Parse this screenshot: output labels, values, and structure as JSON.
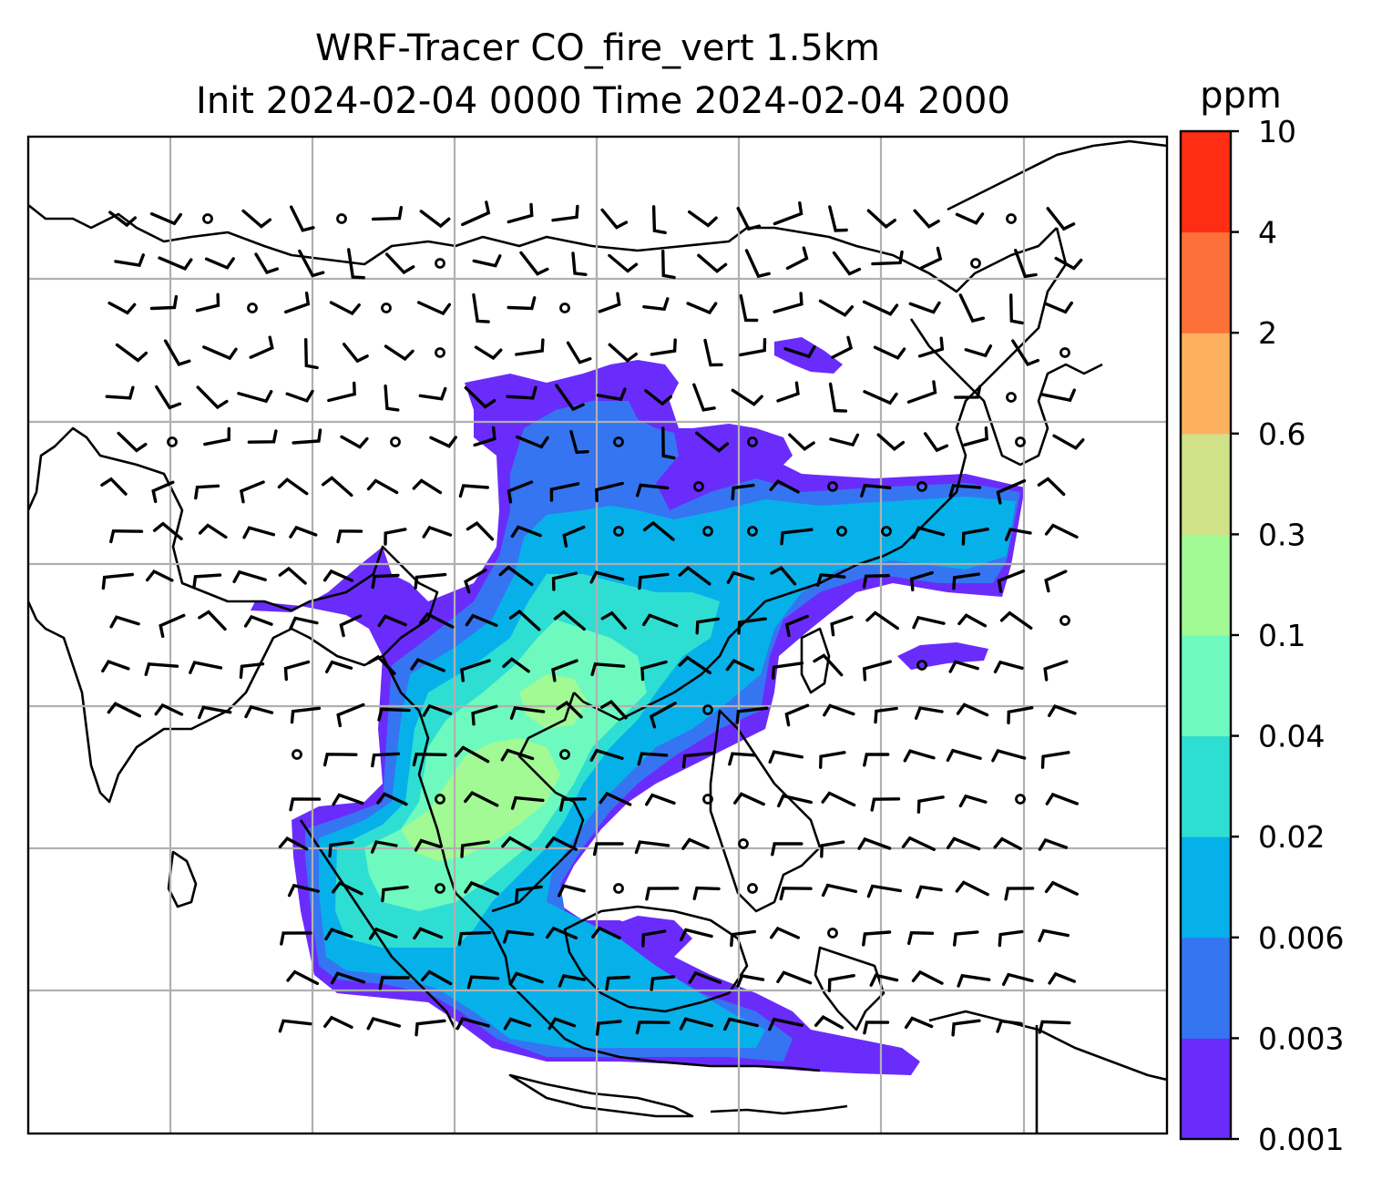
{
  "title": {
    "line1": "WRF-Tracer CO_fire_vert 1.5km",
    "line2": "Init 2024-02-04 0000 Time 2024-02-04 2000"
  },
  "colorbar": {
    "unit_label": "ppm",
    "levels": [
      "0.001",
      "0.003",
      "0.006",
      "0.02",
      "0.04",
      "0.1",
      "0.3",
      "0.6",
      "2",
      "4",
      "10"
    ],
    "colors": [
      "#6a2cfb",
      "#3575f2",
      "#06b1ea",
      "#2fded3",
      "#6efabf",
      "#a1fa94",
      "#d0e187",
      "#fdb060",
      "#fe7039",
      "#fe2d14"
    ]
  },
  "map": {
    "frame_color": "#000000",
    "grid_color": "#b0b0b0",
    "coast_color": "#000000",
    "barb_color": "#000000"
  }
}
